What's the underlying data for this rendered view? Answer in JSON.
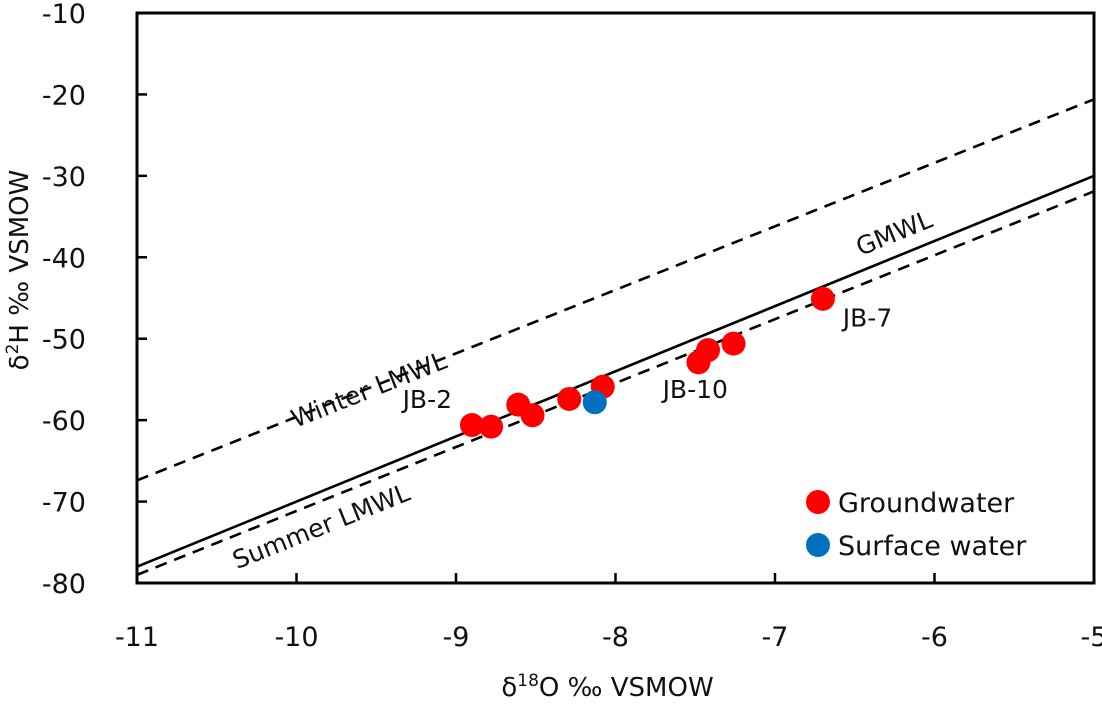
{
  "chart_data": {
    "type": "scatter",
    "title": "",
    "xlabel": "δ18O ‰ VSMOW",
    "ylabel": "δ2H ‰ VSMOW",
    "xlabel_parts": {
      "pre": "δ",
      "sup": "18",
      "post": "O ‰ VSMOW"
    },
    "ylabel_parts": {
      "pre": "δ",
      "sup": "2",
      "post": "H ‰ VSMOW"
    },
    "xlim": [
      -11,
      -5
    ],
    "ylim": [
      -80,
      -10
    ],
    "xticks": [
      -11,
      -10,
      -9,
      -8,
      -7,
      -6,
      -5
    ],
    "yticks": [
      -10,
      -20,
      -30,
      -40,
      -50,
      -60,
      -70,
      -80
    ],
    "grid": false,
    "legend_position": "bottom-right",
    "series": [
      {
        "name": "Groundwater",
        "color": "#ff0000",
        "points": [
          {
            "x": -8.9,
            "y": -60.6
          },
          {
            "x": -8.78,
            "y": -60.8
          },
          {
            "x": -8.61,
            "y": -58.1
          },
          {
            "x": -8.52,
            "y": -59.4
          },
          {
            "x": -8.29,
            "y": -57.4
          },
          {
            "x": -8.08,
            "y": -55.9
          },
          {
            "x": -7.48,
            "y": -52.9
          },
          {
            "x": -7.42,
            "y": -51.4
          },
          {
            "x": -7.26,
            "y": -50.6
          },
          {
            "x": -6.7,
            "y": -45.1
          }
        ]
      },
      {
        "name": "Surface water",
        "color": "#0070c0",
        "points": [
          {
            "x": -8.13,
            "y": -57.8
          }
        ]
      }
    ],
    "lines": [
      {
        "name": "GMWL",
        "style": "solid",
        "slope": 8,
        "intercept": 10,
        "label": "GMWL",
        "label_at_x": -6.2,
        "label_offset": 14
      },
      {
        "name": "Winter LMWL",
        "style": "dashed",
        "slope": 7.8,
        "intercept": 18.4,
        "label": "Winter LMWL",
        "label_at_x": -9.55,
        "label_offset": -10
      },
      {
        "name": "Summer LMWL",
        "style": "dashed",
        "slope": 7.85,
        "intercept": 7.35,
        "label": "Summer LMWL",
        "label_at_x": -9.9,
        "label_offset": -32
      }
    ],
    "annotations": [
      {
        "text": "JB-2",
        "x": -9.18,
        "y": -58.5
      },
      {
        "text": "JB-10",
        "x": -7.5,
        "y": -57.3
      },
      {
        "text": "JB-7",
        "x": -6.42,
        "y": -48.5
      }
    ]
  }
}
